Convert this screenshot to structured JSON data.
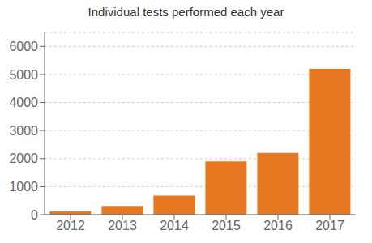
{
  "chart_data": {
    "type": "bar",
    "title": "Individual tests performed each year",
    "categories": [
      "2012",
      "2013",
      "2014",
      "2015",
      "2016",
      "2017"
    ],
    "values": [
      120,
      310,
      680,
      1900,
      2200,
      5200
    ],
    "color": "#E87722",
    "ylim": [
      0,
      6500
    ],
    "yticks": [
      0,
      1000,
      2000,
      3000,
      4000,
      5000,
      6000
    ],
    "grid": true
  }
}
